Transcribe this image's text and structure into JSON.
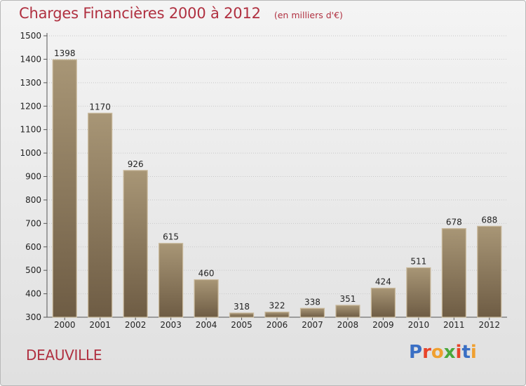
{
  "header": {
    "title": "Charges Financières 2000 à 2012",
    "subtitle": "(en milliers d'€)"
  },
  "footer": {
    "town": "DEAUVILLE",
    "logo_text": "Proxiti",
    "logo_colors": [
      "#3a6fc4",
      "#e8442a",
      "#f0a030",
      "#4aa83c",
      "#e8442a",
      "#3a6fc4",
      "#f0a030"
    ]
  },
  "colors": {
    "title": "#b03040",
    "bar_light": "#a89676",
    "bar_dark": "#6e5c44"
  },
  "chart_data": {
    "type": "bar",
    "title": "Charges Financières 2000 à 2012",
    "subtitle": "(en milliers d'€)",
    "categories": [
      "2000",
      "2001",
      "2002",
      "2003",
      "2004",
      "2005",
      "2006",
      "2007",
      "2008",
      "2009",
      "2010",
      "2011",
      "2012"
    ],
    "values": [
      1398,
      1170,
      926,
      615,
      460,
      318,
      322,
      338,
      351,
      424,
      511,
      678,
      688
    ],
    "ylim": [
      300,
      1500
    ],
    "yticks": [
      300,
      400,
      500,
      600,
      700,
      800,
      900,
      1000,
      1100,
      1200,
      1300,
      1400,
      1500
    ],
    "grid": true
  }
}
